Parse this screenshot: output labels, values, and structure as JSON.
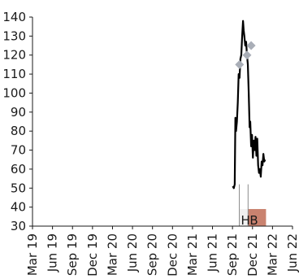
{
  "chart_data": {
    "type": "line",
    "title": "",
    "xlabel": "",
    "ylabel": "",
    "ylim": [
      30,
      140
    ],
    "yticks": [
      30,
      40,
      50,
      60,
      70,
      80,
      90,
      100,
      110,
      120,
      130,
      140
    ],
    "xlim": [
      "2019-03",
      "2022-06"
    ],
    "xticks": [
      "Mar 19",
      "Jun 19",
      "Sep 19",
      "Dec 19",
      "Mar 20",
      "Jun 20",
      "Sep 20",
      "Dec 20",
      "Mar 21",
      "Jun 21",
      "Sep 21",
      "Dec 21",
      "Mar 22",
      "Jun 22"
    ],
    "grid": false,
    "legend": "none",
    "series": [
      {
        "type": "line",
        "color": "#000000",
        "points": [
          [
            "2021-09-01",
            51
          ],
          [
            "2021-09-06",
            50
          ],
          [
            "2021-09-10",
            52
          ],
          [
            "2021-09-13",
            87
          ],
          [
            "2021-09-16",
            80
          ],
          [
            "2021-09-20",
            85
          ],
          [
            "2021-09-24",
            95
          ],
          [
            "2021-09-28",
            110
          ],
          [
            "2021-10-02",
            108
          ],
          [
            "2021-10-06",
            118
          ],
          [
            "2021-10-10",
            120
          ],
          [
            "2021-10-14",
            130
          ],
          [
            "2021-10-18",
            138
          ],
          [
            "2021-10-21",
            133
          ],
          [
            "2021-10-24",
            130
          ],
          [
            "2021-10-28",
            125
          ],
          [
            "2021-11-01",
            127
          ],
          [
            "2021-11-05",
            120
          ],
          [
            "2021-11-09",
            115
          ],
          [
            "2021-11-13",
            100
          ],
          [
            "2021-11-17",
            82
          ],
          [
            "2021-11-20",
            85
          ],
          [
            "2021-11-24",
            72
          ],
          [
            "2021-11-28",
            78
          ],
          [
            "2021-12-02",
            66
          ],
          [
            "2021-12-06",
            75
          ],
          [
            "2021-12-10",
            70
          ],
          [
            "2021-12-14",
            77
          ],
          [
            "2021-12-18",
            67
          ],
          [
            "2021-12-22",
            76
          ],
          [
            "2021-12-26",
            62
          ],
          [
            "2021-12-30",
            58
          ],
          [
            "2022-01-03",
            60
          ],
          [
            "2022-01-07",
            56
          ],
          [
            "2022-01-11",
            64
          ],
          [
            "2022-01-15",
            62
          ],
          [
            "2022-01-19",
            68
          ],
          [
            "2022-01-23",
            64
          ],
          [
            "2022-01-27",
            65
          ]
        ]
      },
      {
        "type": "scatter",
        "color": "#a9aeb7",
        "marker": "diamond",
        "points": [
          [
            "2021-10-02",
            115
          ],
          [
            "2021-11-05",
            120
          ],
          [
            "2021-11-24",
            125
          ]
        ]
      }
    ],
    "bands": [
      {
        "label": "H",
        "start": "2021-10-01",
        "end": "2021-11-10",
        "top": 39,
        "color": "#f0f0f0",
        "fill_from_baseline": true
      },
      {
        "label": "B",
        "start": "2021-11-10",
        "end": "2022-01-31",
        "top": 39,
        "color": "#c9826f",
        "fill_from_baseline": true
      }
    ],
    "vlines": [
      {
        "date": "2021-10-01",
        "bottom": 30,
        "top": 52,
        "color": "#8c8c8c"
      },
      {
        "date": "2021-11-10",
        "bottom": 30,
        "top": 52,
        "color": "#8c8c8c"
      }
    ]
  }
}
